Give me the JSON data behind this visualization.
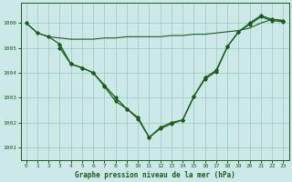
{
  "title": "Graphe pression niveau de la mer (hPa)",
  "background_color": "#cce8e8",
  "line_color": "#1a5c1a",
  "grid_color": "#99ccbb",
  "xlim": [
    -0.5,
    23.5
  ],
  "ylim": [
    1000.5,
    1006.8
  ],
  "yticks": [
    1001,
    1002,
    1003,
    1004,
    1005,
    1006
  ],
  "xticks": [
    0,
    1,
    2,
    3,
    4,
    5,
    6,
    7,
    8,
    9,
    10,
    11,
    12,
    13,
    14,
    15,
    16,
    17,
    18,
    19,
    20,
    21,
    22,
    23
  ],
  "series1_x": [
    0,
    1,
    2,
    3,
    4,
    5,
    6,
    7,
    8,
    9,
    10,
    11,
    12,
    13,
    14,
    15,
    16,
    17,
    18,
    19,
    20,
    21,
    22,
    23
  ],
  "series1_y": [
    1006.0,
    1005.6,
    1005.45,
    1005.4,
    1005.35,
    1005.35,
    1005.35,
    1005.4,
    1005.4,
    1005.45,
    1005.45,
    1005.45,
    1005.45,
    1005.5,
    1005.5,
    1005.55,
    1005.55,
    1005.6,
    1005.65,
    1005.7,
    1005.8,
    1006.0,
    1006.15,
    1006.1
  ],
  "series2_x": [
    0,
    1,
    2,
    3,
    4,
    5,
    6,
    7,
    8,
    9,
    10,
    11,
    12,
    13,
    14,
    15,
    16,
    17,
    18,
    19,
    20,
    21,
    22,
    23
  ],
  "series2_y": [
    1006.0,
    1005.6,
    1005.45,
    1005.15,
    1004.35,
    1004.2,
    1004.0,
    1003.5,
    1003.0,
    1002.55,
    1002.2,
    1001.4,
    1001.8,
    1002.0,
    1002.1,
    1003.05,
    1003.8,
    1004.1,
    1005.05,
    1005.65,
    1006.0,
    1006.3,
    1006.15,
    1006.1
  ],
  "series3_x": [
    3,
    4,
    5,
    6,
    7,
    8,
    9,
    10,
    11,
    12,
    13,
    14,
    15,
    16,
    17,
    18,
    19,
    20,
    21,
    22,
    23
  ],
  "series3_y": [
    1005.0,
    1004.35,
    1004.2,
    1004.0,
    1003.45,
    1002.85,
    1002.55,
    1002.15,
    1001.4,
    1001.75,
    1001.95,
    1002.1,
    1003.05,
    1003.75,
    1004.05,
    1005.05,
    1005.65,
    1005.95,
    1006.25,
    1006.1,
    1006.05
  ]
}
